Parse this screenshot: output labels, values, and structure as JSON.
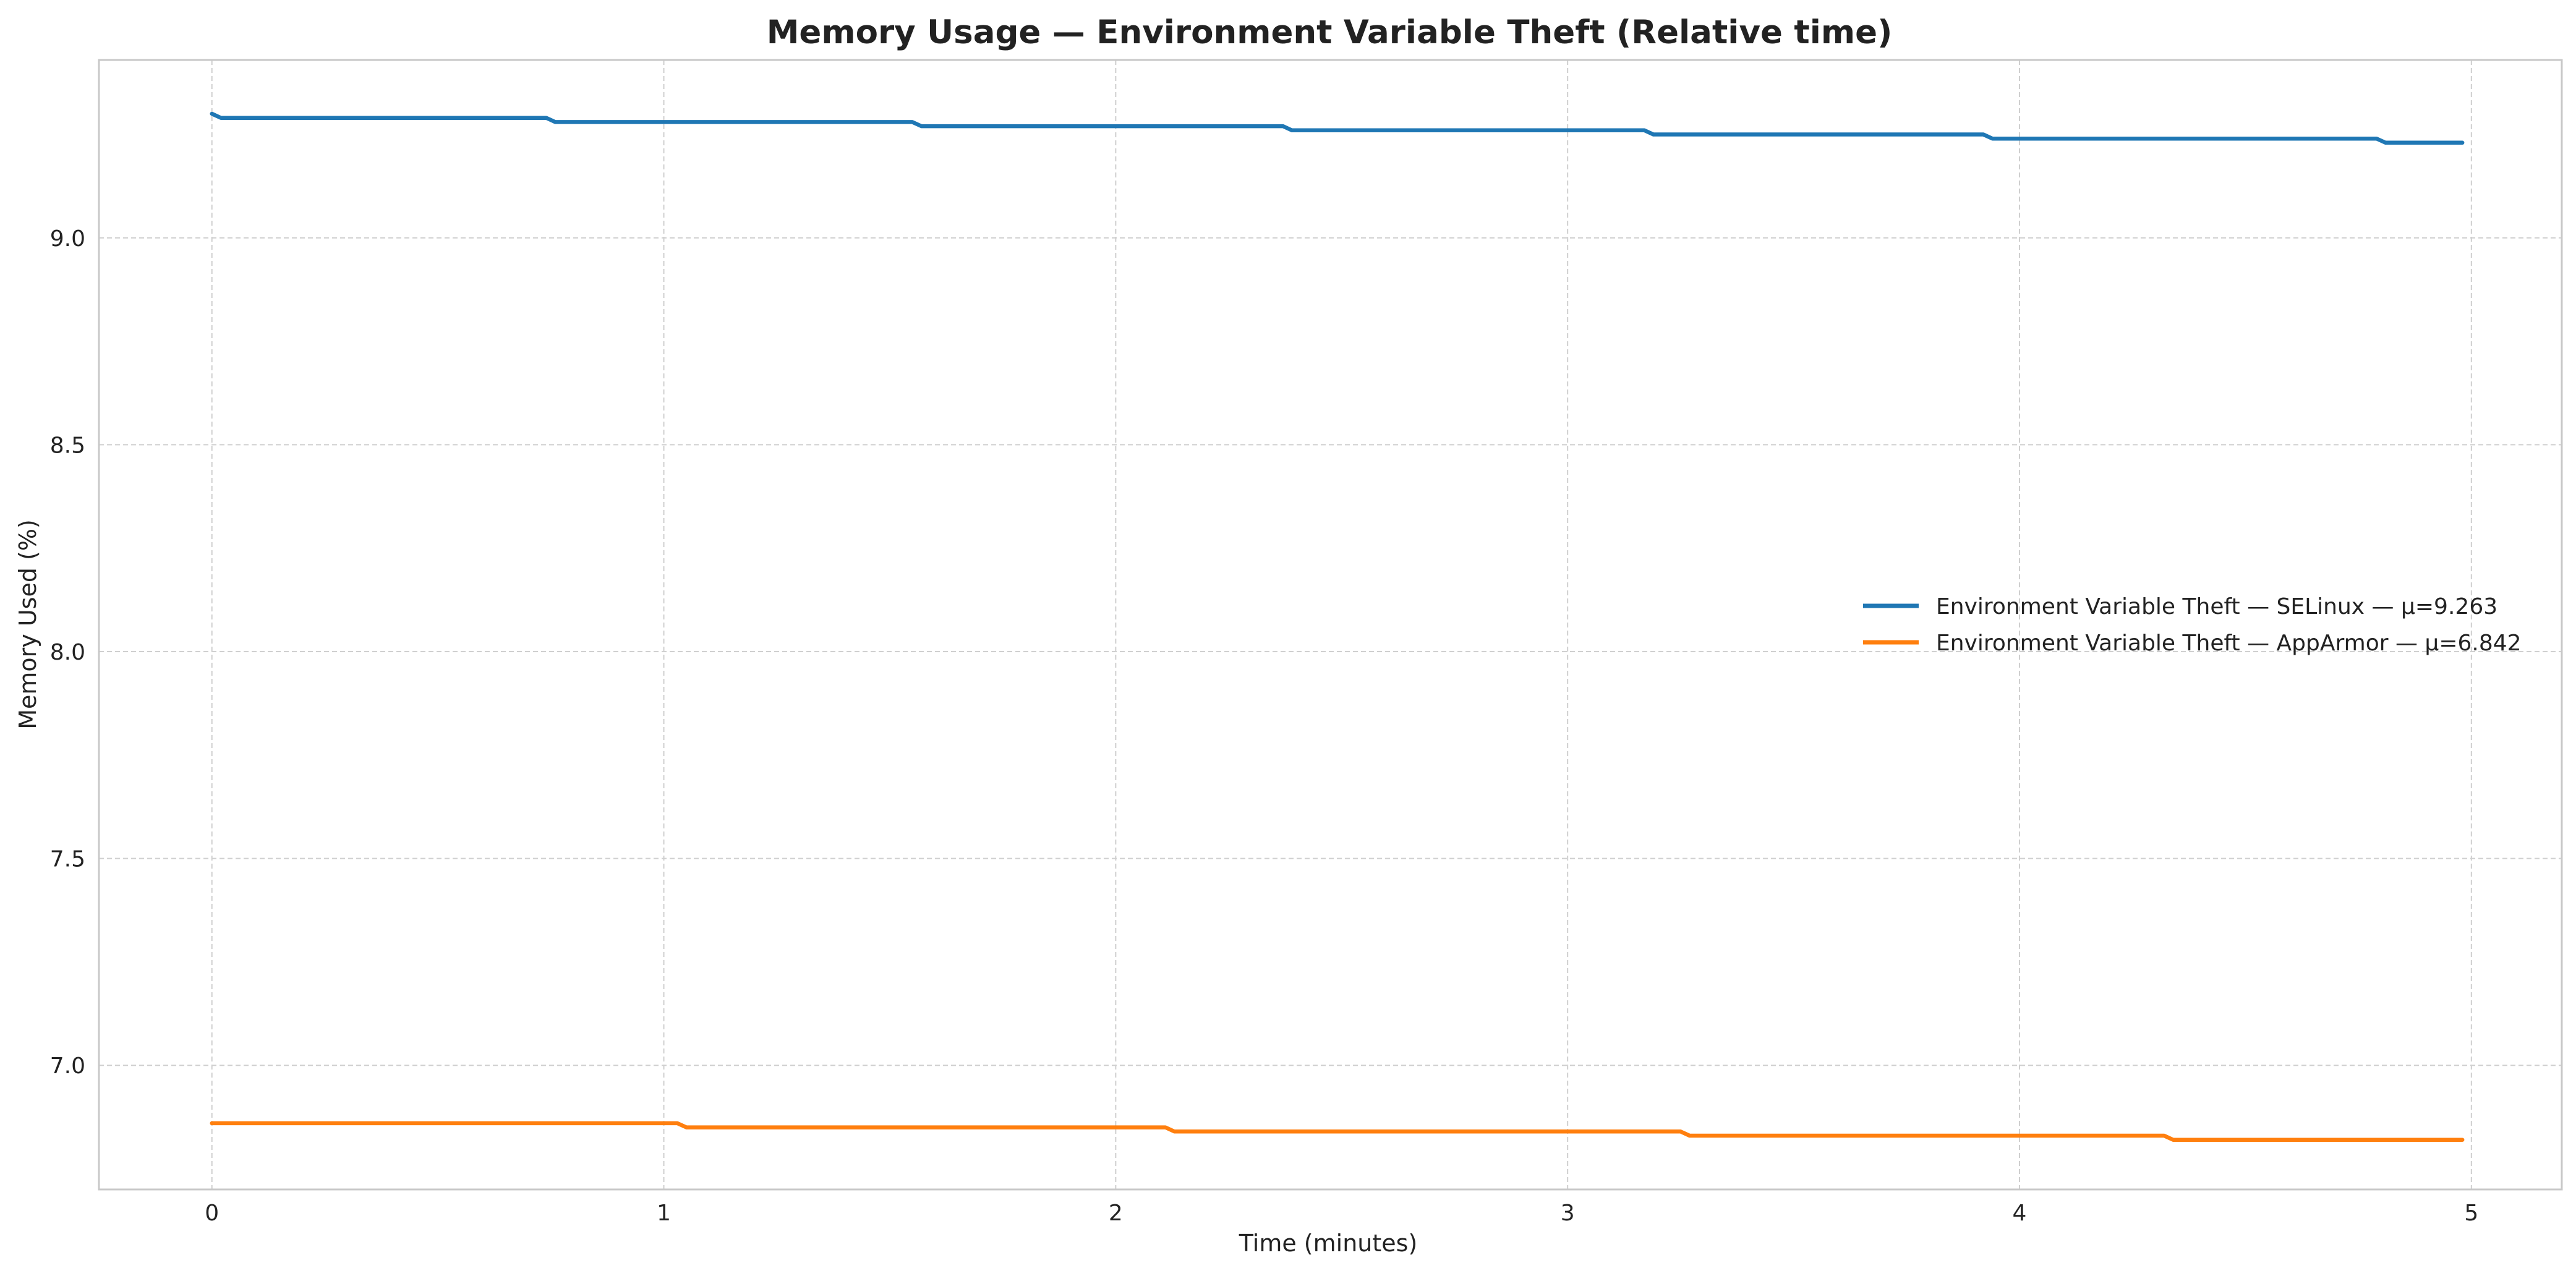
{
  "chart_data": {
    "type": "line",
    "title": "Memory Usage — Environment Variable Theft (Relative time)",
    "xlabel": "Time (minutes)",
    "ylabel": "Memory Used (%)",
    "xlim": [
      -0.25,
      5.2
    ],
    "ylim": [
      6.7,
      9.43
    ],
    "xticks": [
      0,
      1,
      2,
      3,
      4,
      5
    ],
    "xtick_labels": [
      "0",
      "1",
      "2",
      "3",
      "4",
      "5"
    ],
    "yticks": [
      7.0,
      7.5,
      8.0,
      8.5,
      9.0
    ],
    "ytick_labels": [
      "7.0",
      "7.5",
      "8.0",
      "8.5",
      "9.0"
    ],
    "grid": true,
    "legend_position": "center-right",
    "series": [
      {
        "name": "Environment Variable Theft — SELinux — μ=9.263",
        "color": "#1f77b4",
        "x": [
          0,
          0.02,
          0.74,
          0.76,
          1.55,
          1.57,
          2.37,
          2.39,
          3.17,
          3.19,
          3.92,
          3.94,
          4.79,
          4.81,
          4.98
        ],
        "y": [
          9.3,
          9.29,
          9.29,
          9.28,
          9.28,
          9.27,
          9.27,
          9.26,
          9.26,
          9.25,
          9.25,
          9.24,
          9.24,
          9.23,
          9.23
        ]
      },
      {
        "name": "Environment Variable Theft — AppArmor — μ=6.842",
        "color": "#ff7f0e",
        "x": [
          0,
          1.03,
          1.05,
          2.11,
          2.13,
          3.25,
          3.27,
          4.32,
          4.34,
          4.98
        ],
        "y": [
          6.86,
          6.86,
          6.85,
          6.85,
          6.84,
          6.84,
          6.83,
          6.83,
          6.82,
          6.82
        ]
      }
    ]
  }
}
